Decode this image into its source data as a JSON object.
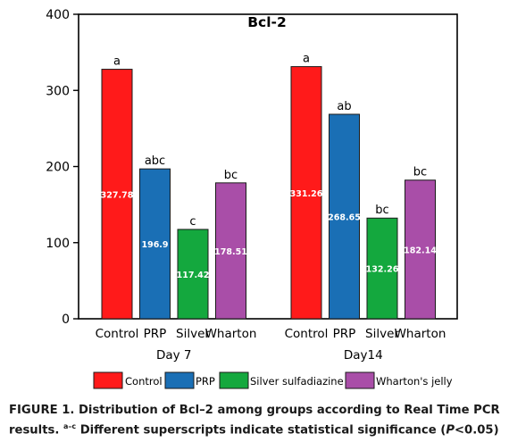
{
  "chart_data": {
    "type": "bar",
    "title": "Bcl-2",
    "groups": [
      "Day 7",
      "Day14"
    ],
    "categories": [
      "Control",
      "PRP",
      "Silver",
      "Wharton"
    ],
    "ylim": [
      0,
      400
    ],
    "yticks": [
      0,
      100,
      200,
      300,
      400
    ],
    "grid": false,
    "legend_position": "bottom",
    "colors": [
      "#ff1a1a",
      "#1a6fb5",
      "#14a83e",
      "#a94ea8"
    ],
    "legend": [
      "Control",
      "PRP",
      "Silver sulfadiazine",
      "Wharton's jelly"
    ],
    "series": [
      {
        "name": "Day 7",
        "values": [
          327.78,
          196.9,
          117.42,
          178.51
        ],
        "value_labels": [
          "327.78",
          "196.9",
          "117.42",
          "178.51"
        ],
        "superscripts": [
          "a",
          "abc",
          "c",
          "bc"
        ]
      },
      {
        "name": "Day14",
        "values": [
          331.26,
          268.65,
          132.26,
          182.14
        ],
        "value_labels": [
          "331.26",
          "268.65",
          "132.26",
          "182.14"
        ],
        "superscripts": [
          "a",
          "ab",
          "bc",
          "bc"
        ]
      }
    ]
  },
  "caption": {
    "line1": "FIGURE 1. Distribution of Bcl–2 among groups according to Real Time PCR",
    "line2_prefix": "results. ",
    "line2_sup": "a–c",
    "line2_mid": " Different superscripts indicate statistical significance (",
    "line2_italic": "P",
    "line2_suffix": "<0.05)"
  }
}
